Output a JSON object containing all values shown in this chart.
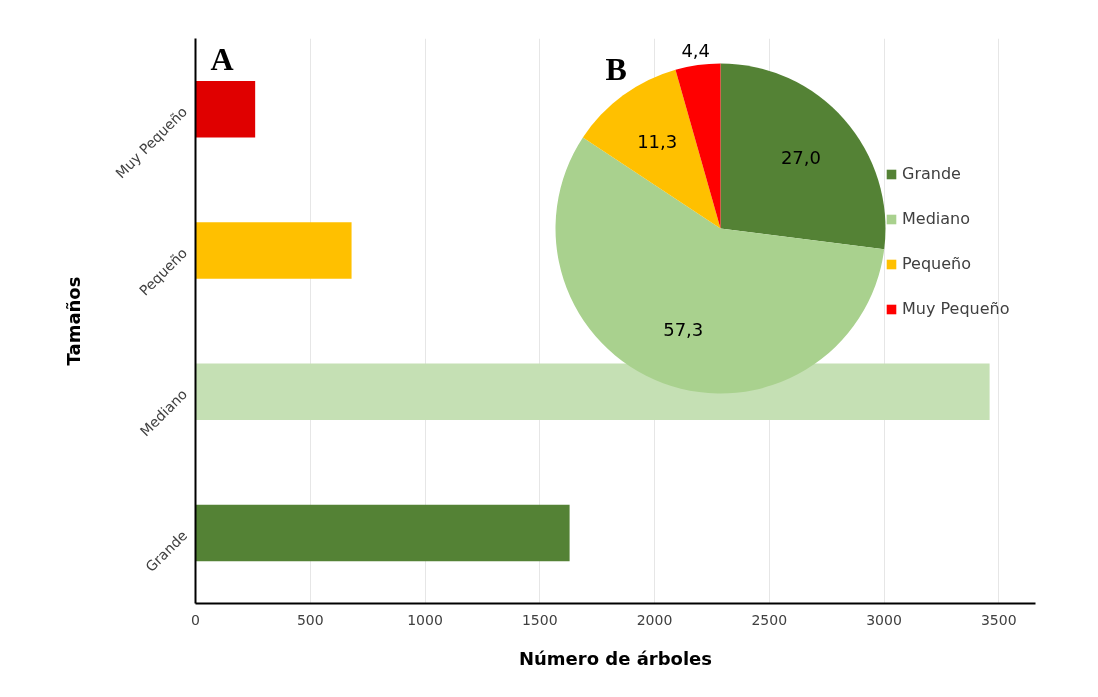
{
  "chart_data": [
    {
      "type": "bar",
      "orientation": "horizontal",
      "categories": [
        "Muy Pequeño",
        "Pequeño",
        "Mediano",
        "Grande"
      ],
      "values": [
        260,
        680,
        3460,
        1630
      ],
      "colors": [
        "#e00000",
        "#ffc000",
        "#c5e0b4",
        "#548235"
      ],
      "xlim": [
        0,
        3660
      ],
      "xticks": [
        0,
        500,
        1000,
        1500,
        2000,
        2500,
        3000,
        3500
      ],
      "grid": "x",
      "xlabel": "Número de árboles",
      "ylabel": "Tamaños",
      "annotations": [
        "A"
      ]
    },
    {
      "type": "pie",
      "categories": [
        "Grande",
        "Mediano",
        "Pequeño",
        "Muy Pequeño"
      ],
      "values": [
        27.0,
        57.3,
        11.3,
        4.4
      ],
      "colors": [
        "#548235",
        "#a9d18e",
        "#ffc000",
        "#ff0000"
      ],
      "value_labels": [
        "27,0",
        "57,3",
        "11,3",
        "4,4"
      ],
      "legend": "right",
      "annotations": [
        "B"
      ]
    }
  ]
}
